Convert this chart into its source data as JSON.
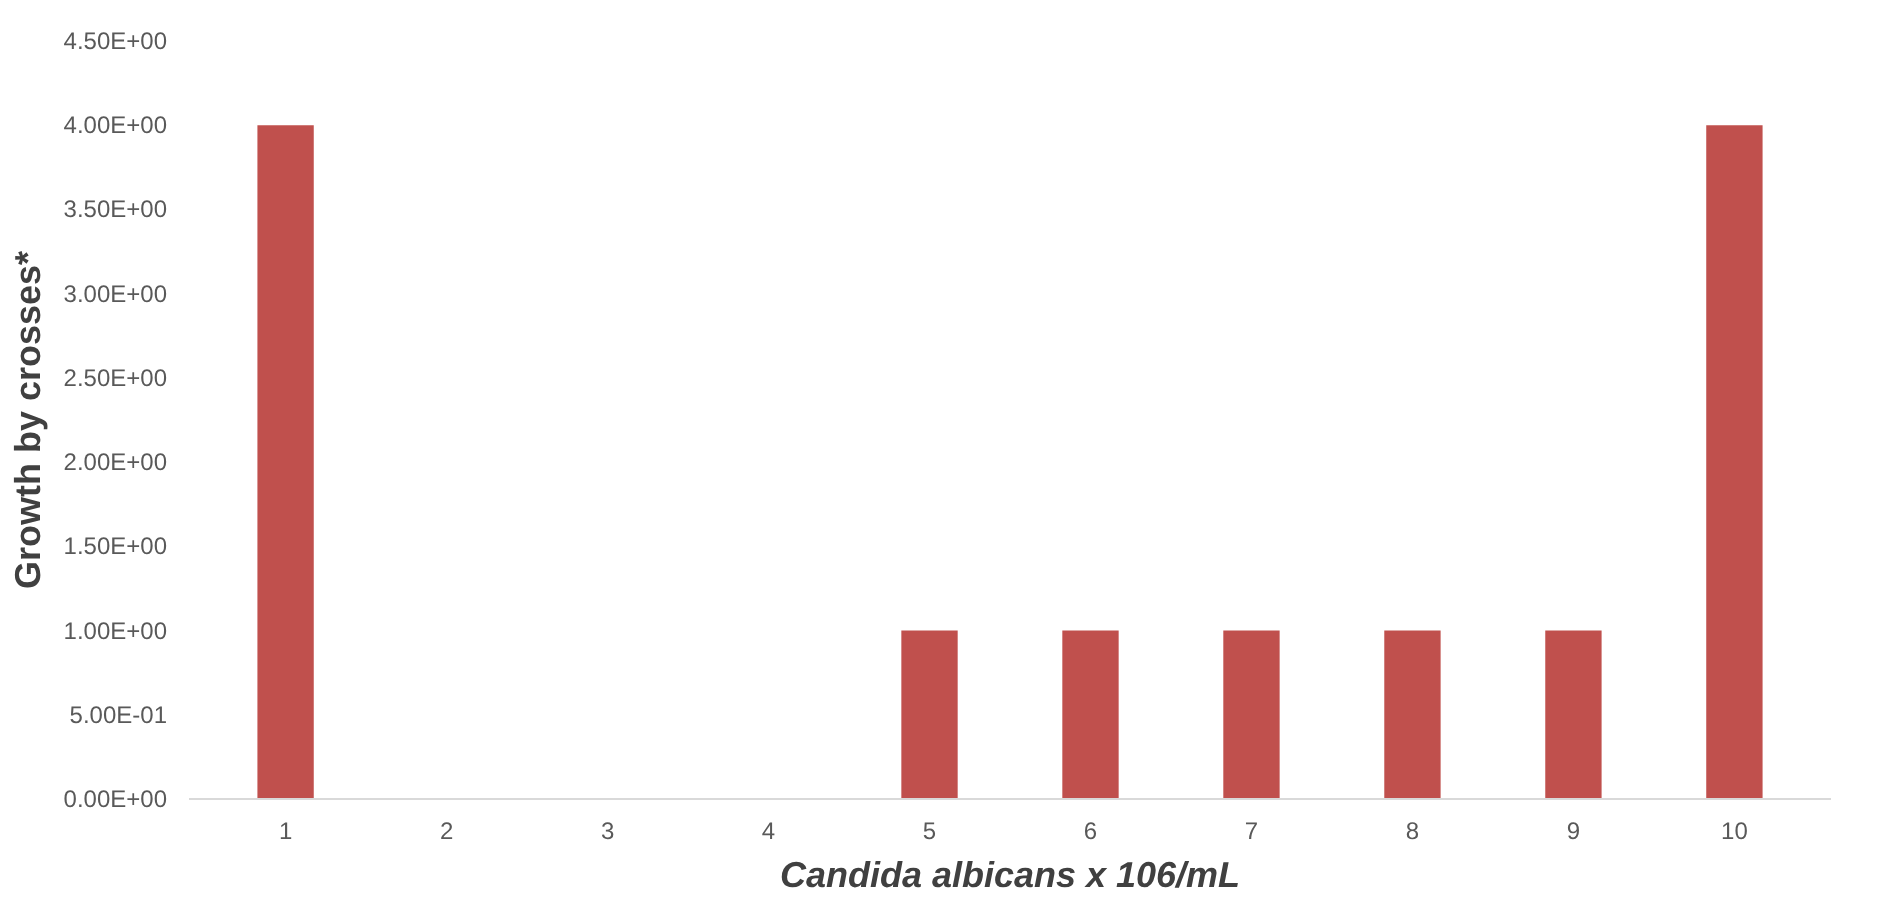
{
  "chart_data": {
    "type": "bar",
    "xlabel": "Candida albicans x 106/mL",
    "ylabel": "Growth by crosses*",
    "categories": [
      "1",
      "2",
      "3",
      "4",
      "5",
      "6",
      "7",
      "8",
      "9",
      "10"
    ],
    "values": [
      4,
      0,
      0,
      0,
      1,
      1,
      1,
      1,
      1,
      4
    ],
    "color": "#c0504d",
    "ylim": [
      0,
      4.5
    ],
    "yticks": [
      {
        "value": 0,
        "label": "0.00E+00"
      },
      {
        "value": 0.5,
        "label": "5.00E-01"
      },
      {
        "value": 1,
        "label": "1.00E+00"
      },
      {
        "value": 1.5,
        "label": "1.50E+00"
      },
      {
        "value": 2,
        "label": "2.00E+00"
      },
      {
        "value": 2.5,
        "label": "2.50E+00"
      },
      {
        "value": 3,
        "label": "3.00E+00"
      },
      {
        "value": 3.5,
        "label": "3.50E+00"
      },
      {
        "value": 4,
        "label": "4.00E+00"
      },
      {
        "value": 4.5,
        "label": "4.50E+00"
      }
    ],
    "grid": false
  }
}
